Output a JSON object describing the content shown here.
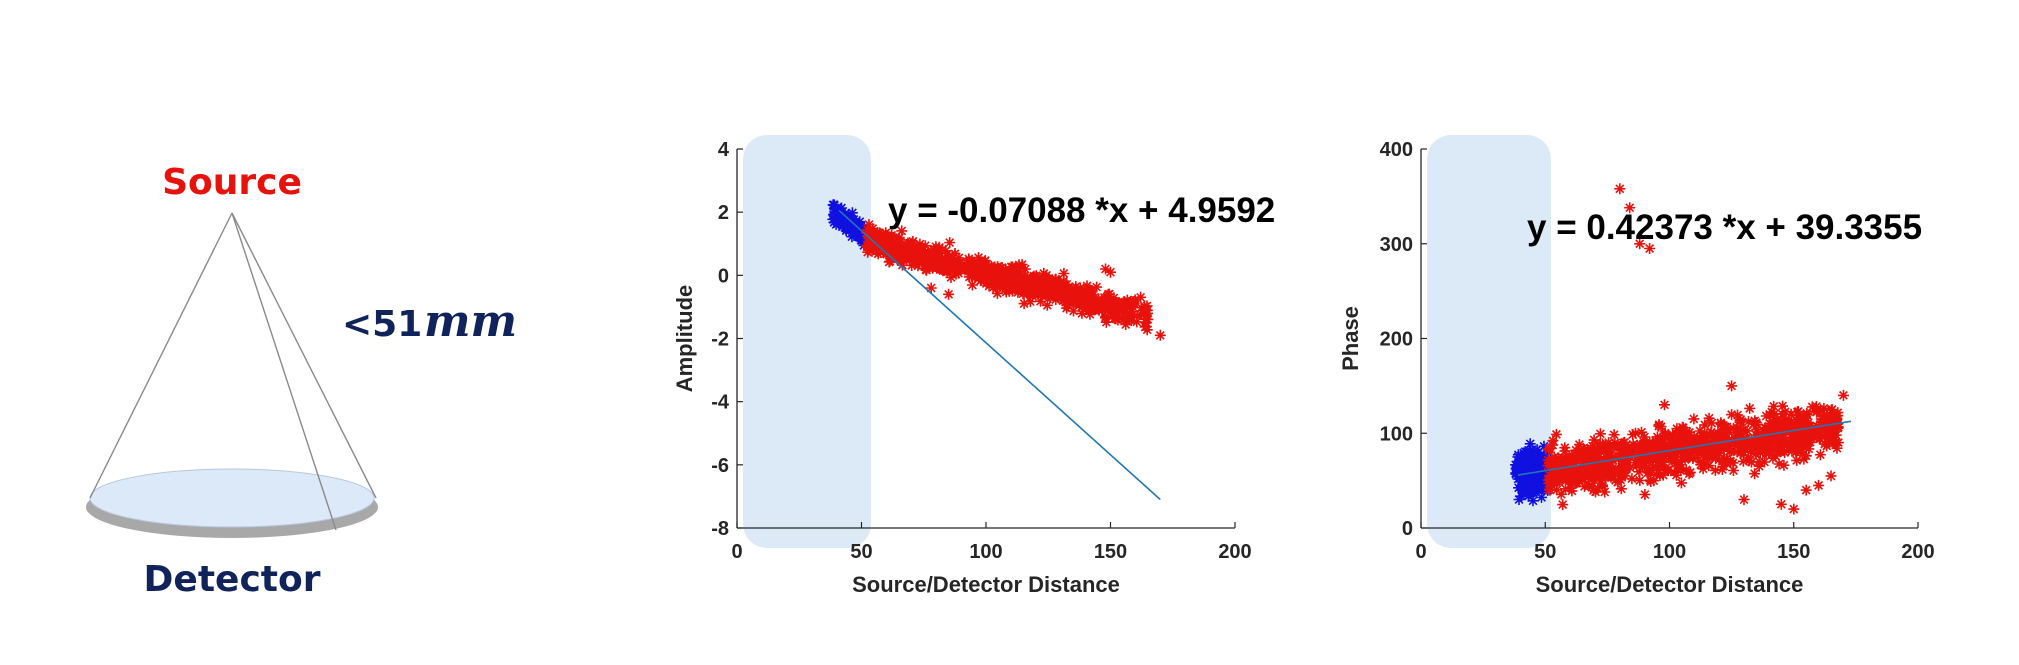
{
  "diagram": {
    "source_label": "Source",
    "detector_label": "Detector",
    "distance_prefix": "<51",
    "distance_unit": "mm",
    "colors": {
      "source": "#e8120c",
      "detector_text": "#10235a",
      "detector_fill": "#dce9f8",
      "detector_rim": "#9a9a9a"
    }
  },
  "chart_data": [
    {
      "type": "scatter",
      "title": "",
      "xlabel": "Source/Detector Distance",
      "ylabel": "Amplitude",
      "xlim": [
        0,
        200
      ],
      "ylim": [
        -8,
        4
      ],
      "xticks": [
        "0",
        "50",
        "100",
        "150",
        "200"
      ],
      "yticks": [
        "-8",
        "-6",
        "-4",
        "-2",
        "0",
        "2",
        "4"
      ],
      "highlight_region": {
        "x": [
          0,
          54
        ],
        "color": "#dceaf7"
      },
      "equation": "y = -0.07088 *x + 4.9592",
      "fit_line": {
        "x": [
          41,
          170
        ],
        "y": [
          2.05,
          -7.1
        ],
        "color": "#1f77b4"
      },
      "series": [
        {
          "color": "#1010e0",
          "x_range": [
            38,
            52
          ],
          "y_center": [
            2.05,
            1.2
          ],
          "y_spread": 0.5,
          "count": 170,
          "seed": 11,
          "tilt": -1.2
        },
        {
          "color": "#e8120c",
          "x_range": [
            52,
            165
          ],
          "y_center": [
            1.1,
            -1.3
          ],
          "y_spread": 0.75,
          "count": 700,
          "seed": 23,
          "tilt": -1.2,
          "outliers": [
            [
              148,
              0.2
            ],
            [
              150,
              0.1
            ],
            [
              170,
              -1.9
            ],
            [
              78,
              -0.4
            ],
            [
              85,
              -0.6
            ],
            [
              140,
              -1.0
            ]
          ]
        }
      ]
    },
    {
      "type": "scatter",
      "title": "",
      "xlabel": "Source/Detector Distance",
      "ylabel": "Phase",
      "xlim": [
        0,
        200
      ],
      "ylim": [
        0,
        400
      ],
      "xticks": [
        "0",
        "50",
        "100",
        "150",
        "200"
      ],
      "yticks": [
        "0",
        "100",
        "200",
        "300",
        "400"
      ],
      "highlight_region": {
        "x": [
          0,
          52
        ],
        "color": "#dceaf7"
      },
      "equation": "y = 0.42373 *x + 39.3355",
      "fit_line": {
        "x": [
          39,
          173
        ],
        "y": [
          55.9,
          112.6
        ],
        "color": "#1f77b4"
      },
      "series": [
        {
          "color": "#1010e0",
          "x_range": [
            38,
            51
          ],
          "y_center": [
            58,
            60
          ],
          "y_spread": 42,
          "count": 200,
          "seed": 31,
          "tilt": 0
        },
        {
          "color": "#e8120c",
          "x_range": [
            51,
            168
          ],
          "y_center": [
            60,
            108
          ],
          "y_spread": 45,
          "count": 900,
          "seed": 47,
          "tilt": 0,
          "outliers": [
            [
              80,
              358
            ],
            [
              84,
              338
            ],
            [
              88,
              300
            ],
            [
              92,
              295
            ],
            [
              130,
              30
            ],
            [
              145,
              25
            ],
            [
              150,
              20
            ],
            [
              155,
              40
            ],
            [
              160,
              45
            ],
            [
              165,
              55
            ],
            [
              170,
              140
            ],
            [
              125,
              150
            ],
            [
              98,
              130
            ]
          ]
        }
      ]
    }
  ]
}
